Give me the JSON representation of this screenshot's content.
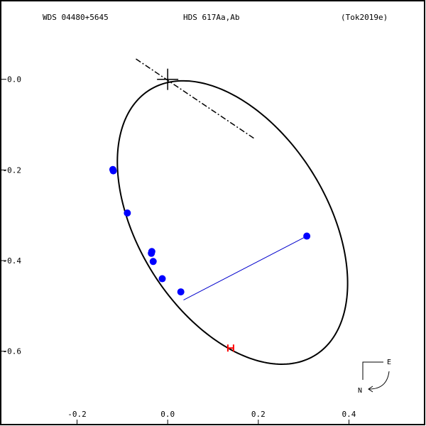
{
  "header": {
    "wds_id": "WDS 04480+5645",
    "pair": "HDS 617Aa,Ab",
    "reference": "(Tok2019e)"
  },
  "compass": {
    "east": "E",
    "north": "N"
  },
  "chart_data": {
    "type": "scatter",
    "xlim": [
      -0.37,
      0.57
    ],
    "ylim": [
      -0.765,
      0.175
    ],
    "x_ticks": [
      {
        "value": -0.2,
        "label": "-0.2"
      },
      {
        "value": 0.0,
        "label": "0.0"
      },
      {
        "value": 0.2,
        "label": "0.2"
      },
      {
        "value": 0.4,
        "label": "0.4"
      }
    ],
    "y_ticks": [
      {
        "value": 0.0,
        "label": "0.0"
      },
      {
        "value": -0.2,
        "label": "-0.2"
      },
      {
        "value": -0.4,
        "label": "-0.4"
      },
      {
        "value": -0.6,
        "label": "-0.6"
      }
    ],
    "primary_star": {
      "x": 0.0,
      "y": 0.0
    },
    "orbit_ellipse": {
      "center_x": 0.143,
      "center_y": -0.316,
      "semi_major": 0.345,
      "semi_minor": 0.208,
      "rotation_deg": -58
    },
    "line_of_nodes": {
      "x1": -0.07,
      "y1": 0.045,
      "x2": 0.19,
      "y2": -0.13
    },
    "periastron_line": {
      "x1": 0.307,
      "y1": -0.346,
      "x2": 0.035,
      "y2": -0.487
    },
    "observations": [
      {
        "x": -0.121,
        "y": -0.199
      },
      {
        "x": -0.12,
        "y": -0.202
      },
      {
        "x": -0.089,
        "y": -0.295
      },
      {
        "x": -0.035,
        "y": -0.38
      },
      {
        "x": -0.036,
        "y": -0.384
      },
      {
        "x": -0.032,
        "y": -0.402
      },
      {
        "x": -0.012,
        "y": -0.44
      },
      {
        "x": 0.029,
        "y": -0.469
      },
      {
        "x": 0.307,
        "y": -0.346
      }
    ],
    "red_marker": {
      "x": 0.139,
      "y": -0.593
    },
    "colors": {
      "observation": "#0000ff",
      "marker": "#ff0000",
      "connector": "#0000cc",
      "orbit": "#000000"
    },
    "grid": false
  }
}
